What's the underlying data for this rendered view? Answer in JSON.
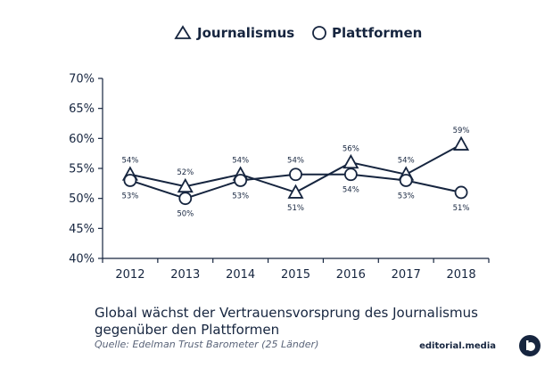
{
  "chart_data": {
    "type": "line",
    "title": "",
    "xlabel": "",
    "ylabel": "",
    "x": [
      "2012",
      "2013",
      "2014",
      "2015",
      "2016",
      "2017",
      "2018"
    ],
    "ylim": [
      40,
      70
    ],
    "yticks": [
      "40%",
      "45%",
      "50%",
      "55%",
      "60%",
      "65%",
      "70%"
    ],
    "grid": false,
    "legend_position": "top",
    "series": [
      {
        "name": "Journalismus",
        "marker": "triangle",
        "values": [
          54,
          52,
          54,
          51,
          56,
          54,
          59
        ],
        "labels": [
          "54%",
          "52%",
          "54%",
          "51%",
          "56%",
          "54%",
          "59%"
        ],
        "label_positions": [
          "above",
          "above",
          "above",
          "below",
          "above",
          "above",
          "above"
        ]
      },
      {
        "name": "Plattformen",
        "marker": "circle",
        "values": [
          53,
          50,
          53,
          54,
          54,
          53,
          51
        ],
        "labels": [
          "53%",
          "50%",
          "53%",
          "54%",
          "54%",
          "53%",
          "51%"
        ],
        "label_positions": [
          "below",
          "below",
          "below",
          "above",
          "below",
          "below",
          "below"
        ]
      }
    ],
    "line_color": "#16253f"
  },
  "caption": {
    "line1": "Global wächst der Vertrauensvorsprung des Journalismus",
    "line2": "gegenüber den Plattformen"
  },
  "source": "Quelle: Edelman Trust Barometer (25 Länder)",
  "brand": "editorial.media"
}
